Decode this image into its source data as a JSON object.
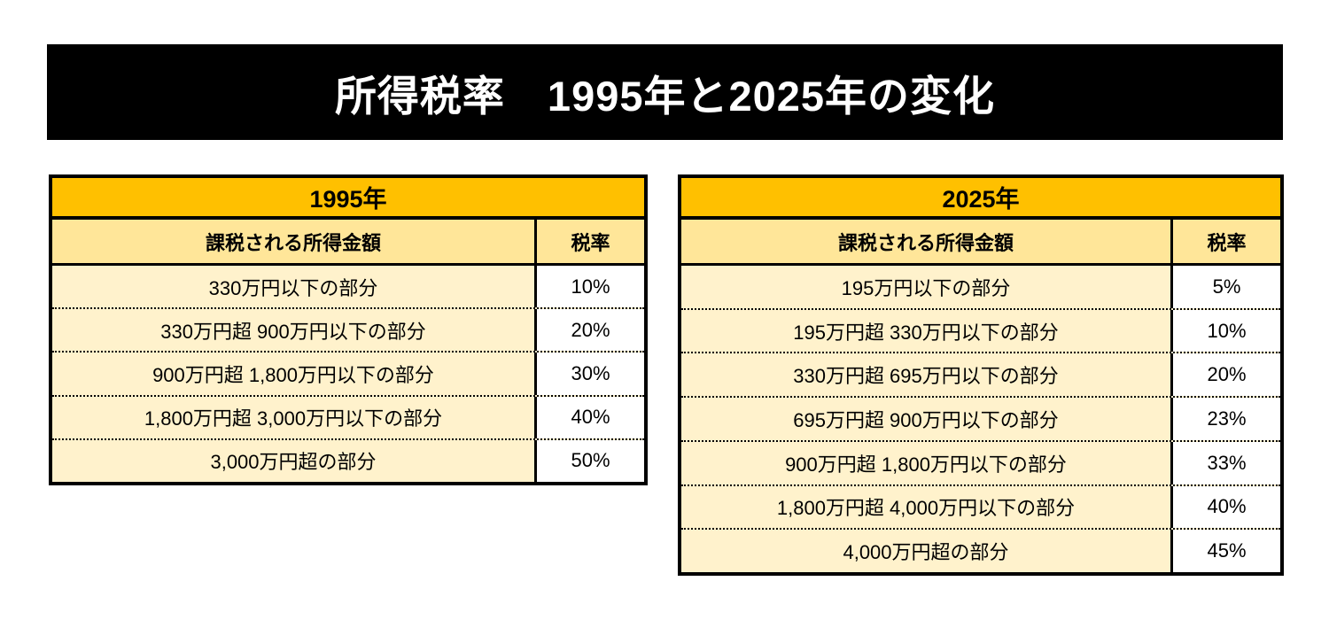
{
  "banner": {
    "title": "所得税率　1995年と2025年の変化",
    "background": "#000000",
    "text_color": "#FFFFFF"
  },
  "colors": {
    "table_title_bg": "#FFC000",
    "table_header_bg": "#FFE699",
    "table_body_bg": "#FFF2CC",
    "rate_cell_bg": "#FFFFFF",
    "border": "#000000"
  },
  "tables": [
    {
      "year": "1995年",
      "columns": {
        "income": "課税される所得金額",
        "rate": "税率"
      },
      "rows": [
        {
          "income": "330万円以下の部分",
          "rate": "10%"
        },
        {
          "income": "330万円超 900万円以下の部分",
          "rate": "20%"
        },
        {
          "income": "900万円超 1,800万円以下の部分",
          "rate": "30%"
        },
        {
          "income": "1,800万円超 3,000万円以下の部分",
          "rate": "40%"
        },
        {
          "income": "3,000万円超の部分",
          "rate": "50%"
        }
      ]
    },
    {
      "year": "2025年",
      "columns": {
        "income": "課税される所得金額",
        "rate": "税率"
      },
      "rows": [
        {
          "income": "195万円以下の部分",
          "rate": "5%"
        },
        {
          "income": "195万円超 330万円以下の部分",
          "rate": "10%"
        },
        {
          "income": "330万円超 695万円以下の部分",
          "rate": "20%"
        },
        {
          "income": "695万円超 900万円以下の部分",
          "rate": "23%"
        },
        {
          "income": "900万円超 1,800万円以下の部分",
          "rate": "33%"
        },
        {
          "income": "1,800万円超 4,000万円以下の部分",
          "rate": "40%"
        },
        {
          "income": "4,000万円超の部分",
          "rate": "45%"
        }
      ]
    }
  ]
}
